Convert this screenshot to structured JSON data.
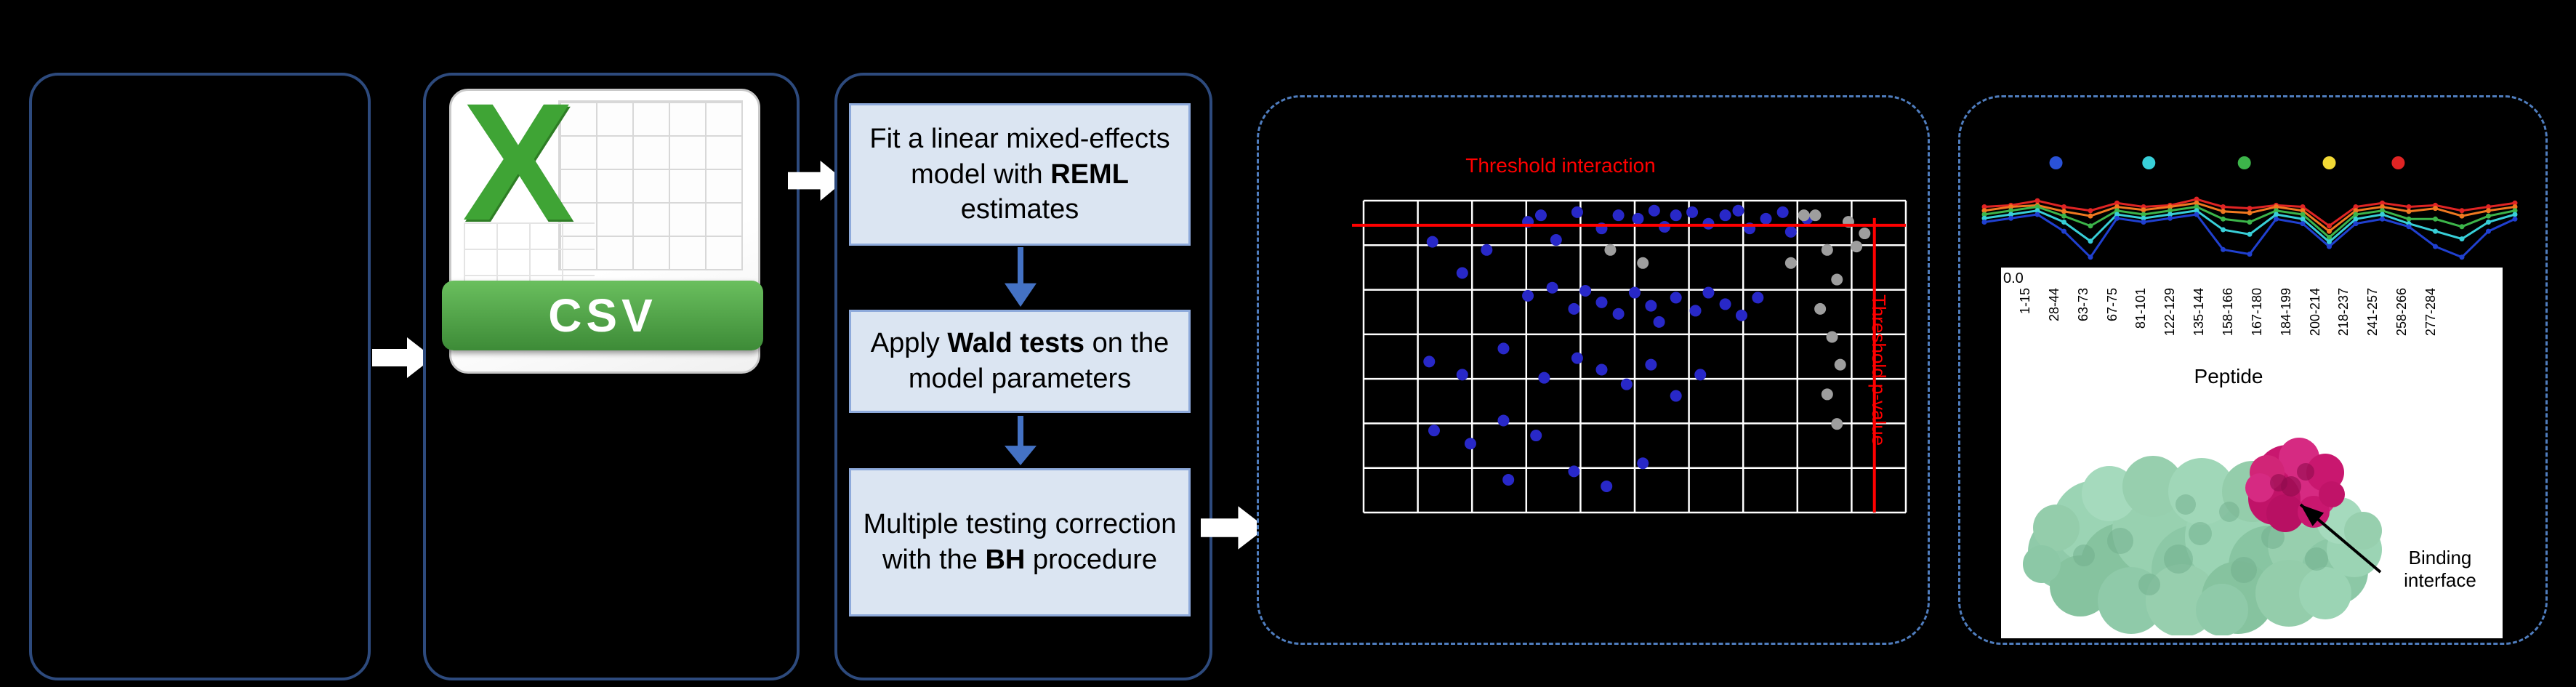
{
  "figure": {
    "csv_icon": {
      "letter": "X",
      "label": "CSV",
      "accent_green": "#3fa435"
    },
    "steps": [
      {
        "before": "Fit a linear mixed-effects model with ",
        "bold": "REML",
        "after": " estimates"
      },
      {
        "before": "Apply ",
        "bold": "Wald tests",
        "after": " on the model parameters"
      },
      {
        "before": "Multiple testing correction with the ",
        "bold": "BH",
        "after": " procedure"
      }
    ]
  },
  "annotations": {
    "binding_interface": "Binding interface"
  },
  "chart_data": [
    {
      "type": "scatter",
      "title": "",
      "threshold_labels": {
        "top": "Threshold interaction",
        "right": "Threshold p-value"
      },
      "grid": {
        "cols": 10,
        "rows": 7,
        "line_color": "#ffffff",
        "grid_on": true
      },
      "thresholds": {
        "h_frac": 0.079,
        "v_frac": 0.942,
        "color": "#ff0000"
      },
      "series": [
        {
          "name": "significant-peptides",
          "color": "#2828c8",
          "points": [
            [
              0.127,
              0.132
            ],
            [
              0.182,
              0.232
            ],
            [
              0.227,
              0.158
            ],
            [
              0.303,
              0.068
            ],
            [
              0.327,
              0.047
            ],
            [
              0.355,
              0.126
            ],
            [
              0.394,
              0.037
            ],
            [
              0.439,
              0.089
            ],
            [
              0.47,
              0.047
            ],
            [
              0.506,
              0.058
            ],
            [
              0.536,
              0.032
            ],
            [
              0.555,
              0.084
            ],
            [
              0.576,
              0.047
            ],
            [
              0.606,
              0.037
            ],
            [
              0.636,
              0.074
            ],
            [
              0.667,
              0.047
            ],
            [
              0.691,
              0.032
            ],
            [
              0.712,
              0.089
            ],
            [
              0.742,
              0.058
            ],
            [
              0.773,
              0.037
            ],
            [
              0.788,
              0.1
            ],
            [
              0.818,
              0.058
            ],
            [
              0.303,
              0.305
            ],
            [
              0.348,
              0.279
            ],
            [
              0.388,
              0.347
            ],
            [
              0.409,
              0.289
            ],
            [
              0.439,
              0.326
            ],
            [
              0.47,
              0.363
            ],
            [
              0.5,
              0.295
            ],
            [
              0.53,
              0.337
            ],
            [
              0.545,
              0.389
            ],
            [
              0.576,
              0.311
            ],
            [
              0.612,
              0.353
            ],
            [
              0.636,
              0.295
            ],
            [
              0.667,
              0.332
            ],
            [
              0.697,
              0.368
            ],
            [
              0.727,
              0.311
            ],
            [
              0.121,
              0.516
            ],
            [
              0.182,
              0.558
            ],
            [
              0.258,
              0.474
            ],
            [
              0.333,
              0.568
            ],
            [
              0.394,
              0.505
            ],
            [
              0.439,
              0.542
            ],
            [
              0.485,
              0.589
            ],
            [
              0.53,
              0.526
            ],
            [
              0.576,
              0.626
            ],
            [
              0.621,
              0.558
            ],
            [
              0.13,
              0.737
            ],
            [
              0.197,
              0.779
            ],
            [
              0.258,
              0.705
            ],
            [
              0.318,
              0.753
            ],
            [
              0.267,
              0.895
            ],
            [
              0.388,
              0.868
            ],
            [
              0.448,
              0.916
            ],
            [
              0.515,
              0.842
            ]
          ]
        },
        {
          "name": "non-significant-peptides",
          "color": "#9e9e9e",
          "points": [
            [
              0.833,
              0.047
            ],
            [
              0.855,
              0.158
            ],
            [
              0.873,
              0.253
            ],
            [
              0.842,
              0.347
            ],
            [
              0.864,
              0.437
            ],
            [
              0.879,
              0.526
            ],
            [
              0.855,
              0.621
            ],
            [
              0.873,
              0.716
            ],
            [
              0.812,
              0.047
            ],
            [
              0.894,
              0.068
            ],
            [
              0.909,
              0.147
            ],
            [
              0.455,
              0.158
            ],
            [
              0.515,
              0.2
            ],
            [
              0.788,
              0.2
            ],
            [
              0.924,
              0.105
            ]
          ]
        }
      ]
    },
    {
      "type": "line",
      "title": "",
      "xlabel": "Peptide",
      "y_tick": "0.0",
      "x_labels": [
        "1-15",
        "28-44",
        "63-73",
        "67-75",
        "81-101",
        "122-129",
        "135-144",
        "158-166",
        "167-180",
        "184-199",
        "200-214",
        "218-237",
        "241-257",
        "258-266",
        "277-284"
      ],
      "marker_dots": [
        {
          "x": 0.135,
          "color": "#2a52d8"
        },
        {
          "x": 0.31,
          "color": "#38cfd8"
        },
        {
          "x": 0.49,
          "color": "#3cb54a"
        },
        {
          "x": 0.65,
          "color": "#f2d935"
        },
        {
          "x": 0.78,
          "color": "#e02424"
        }
      ],
      "series": [
        {
          "name": "state-red",
          "color": "#e02424",
          "values": [
            0.3,
            0.28,
            0.22,
            0.3,
            0.35,
            0.25,
            0.3,
            0.28,
            0.2,
            0.3,
            0.32,
            0.28,
            0.3,
            0.55,
            0.3,
            0.25,
            0.3,
            0.28,
            0.35,
            0.3,
            0.25
          ]
        },
        {
          "name": "state-orange",
          "color": "#f07820",
          "values": [
            0.35,
            0.3,
            0.28,
            0.36,
            0.42,
            0.3,
            0.34,
            0.3,
            0.25,
            0.36,
            0.38,
            0.3,
            0.35,
            0.62,
            0.35,
            0.3,
            0.36,
            0.32,
            0.42,
            0.35,
            0.3
          ]
        },
        {
          "name": "state-green",
          "color": "#3cb54a",
          "values": [
            0.4,
            0.35,
            0.3,
            0.42,
            0.55,
            0.35,
            0.4,
            0.35,
            0.3,
            0.46,
            0.5,
            0.35,
            0.4,
            0.7,
            0.4,
            0.35,
            0.46,
            0.46,
            0.56,
            0.42,
            0.35
          ]
        },
        {
          "name": "state-cyan",
          "color": "#38cfd8",
          "values": [
            0.45,
            0.4,
            0.35,
            0.5,
            0.75,
            0.4,
            0.45,
            0.4,
            0.35,
            0.6,
            0.66,
            0.4,
            0.46,
            0.76,
            0.46,
            0.4,
            0.52,
            0.62,
            0.72,
            0.5,
            0.4
          ]
        },
        {
          "name": "state-blue",
          "color": "#2040d0",
          "values": [
            0.5,
            0.45,
            0.4,
            0.62,
            0.96,
            0.45,
            0.5,
            0.45,
            0.4,
            0.86,
            0.92,
            0.46,
            0.52,
            0.82,
            0.52,
            0.46,
            0.56,
            0.82,
            0.96,
            0.62,
            0.46
          ]
        }
      ]
    }
  ]
}
